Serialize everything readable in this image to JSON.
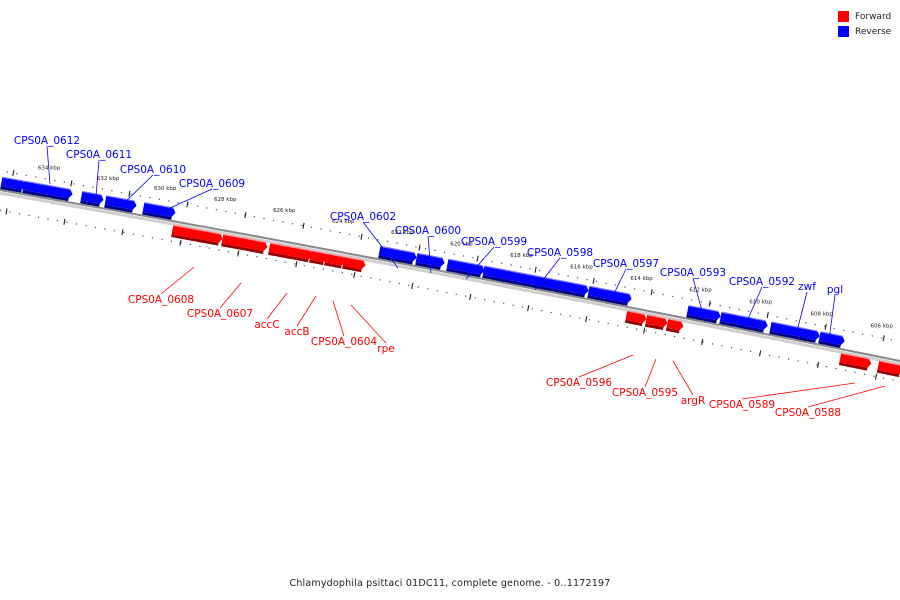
{
  "legend": [
    {
      "label": "Forward",
      "color": "#ff0000"
    },
    {
      "label": "Reverse",
      "color": "#0000ff"
    }
  ],
  "caption": "Chlamydophila psittaci 01DC11, complete genome. - 0..1172197",
  "colors": {
    "forward": "#ff0000",
    "reverse": "#0000ff",
    "backbone": "#888888"
  },
  "ticks": [
    "634 kbp",
    "632 kbp",
    "630 kbp",
    "628 kbp",
    "626 kbp",
    "624 kbp",
    "622 kbp",
    "620 kbp",
    "618 kbp",
    "616 kbp",
    "614 kbp",
    "612 kbp",
    "610 kbp",
    "608 kbp",
    "606 kbp"
  ],
  "genes": [
    {
      "name": "CPS0A_0612",
      "strand": "reverse"
    },
    {
      "name": "CPS0A_0611",
      "strand": "reverse"
    },
    {
      "name": "CPS0A_0610",
      "strand": "reverse"
    },
    {
      "name": "CPS0A_0609",
      "strand": "reverse"
    },
    {
      "name": "CPS0A_0608",
      "strand": "forward"
    },
    {
      "name": "CPS0A_0607",
      "strand": "forward"
    },
    {
      "name": "accC",
      "strand": "forward"
    },
    {
      "name": "accB",
      "strand": "forward"
    },
    {
      "name": "CPS0A_0604",
      "strand": "forward"
    },
    {
      "name": "rpe",
      "strand": "forward"
    },
    {
      "name": "CPS0A_0602",
      "strand": "reverse"
    },
    {
      "name": "CPS0A_0600",
      "strand": "reverse"
    },
    {
      "name": "CPS0A_0599",
      "strand": "reverse"
    },
    {
      "name": "CPS0A_0598",
      "strand": "reverse"
    },
    {
      "name": "CPS0A_0597",
      "strand": "reverse"
    },
    {
      "name": "CPS0A_0596",
      "strand": "forward"
    },
    {
      "name": "CPS0A_0595",
      "strand": "forward"
    },
    {
      "name": "argR",
      "strand": "forward"
    },
    {
      "name": "CPS0A_0593",
      "strand": "reverse"
    },
    {
      "name": "CPS0A_0592",
      "strand": "reverse"
    },
    {
      "name": "zwf",
      "strand": "reverse"
    },
    {
      "name": "pgl",
      "strand": "reverse"
    },
    {
      "name": "CPS0A_0589",
      "strand": "forward"
    },
    {
      "name": "CPS0A_0588",
      "strand": "forward"
    }
  ]
}
